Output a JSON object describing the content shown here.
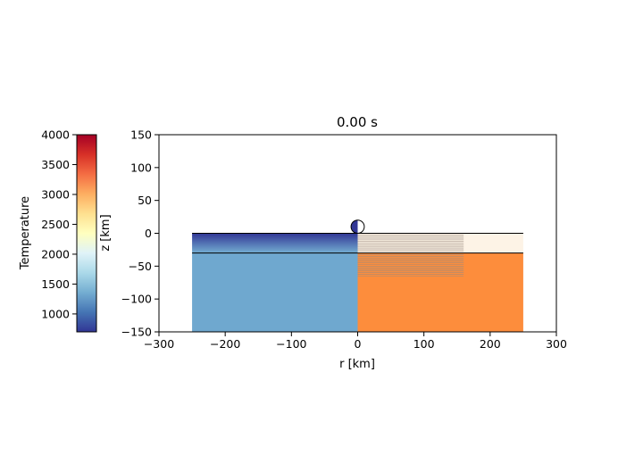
{
  "chart_data": {
    "type": "cross-section",
    "title": "0.00 s",
    "xlabel": "r [km]",
    "ylabel": "z [km]",
    "xlim": [
      -300,
      300
    ],
    "ylim": [
      -150,
      150
    ],
    "xticks": [
      -300,
      -200,
      -100,
      0,
      100,
      200,
      300
    ],
    "yticks": [
      -150,
      -100,
      -50,
      0,
      50,
      100,
      150
    ],
    "xtick_labels": [
      "−300",
      "−200",
      "−100",
      "0",
      "100",
      "200",
      "300"
    ],
    "ytick_labels": [
      "−150",
      "−100",
      "−50",
      "0",
      "50",
      "100",
      "150"
    ],
    "target": {
      "r_range": [
        -250,
        250
      ],
      "z_top": 0,
      "z_bottom": -150,
      "layer_interface_z": -30
    },
    "left_half": {
      "shows": "Temperature",
      "upper_layer_gradient": {
        "z_top": 0,
        "z_bottom": -30,
        "color_top": "#313695",
        "color_bottom": "#74add1"
      },
      "lower_layer_color": "#6fa8cf"
    },
    "right_half": {
      "upper_layer_color": "#fdf3e6",
      "lower_layer_color": "#fd8d3c",
      "hatched_region": {
        "r_range": [
          0,
          160
        ],
        "z_range": [
          -65,
          0
        ]
      },
      "hatch_line_spacing_km": 2.5
    },
    "projectile": {
      "r": 0,
      "z": 10,
      "radius_km": 10,
      "left_fill": "#313695"
    },
    "colorbar": {
      "label": "Temperature",
      "range": [
        700,
        4000
      ],
      "ticks": [
        1000,
        1500,
        2000,
        2500,
        3000,
        3500,
        4000
      ],
      "tick_labels": [
        "1000",
        "1500",
        "2000",
        "2500",
        "3000",
        "3500",
        "4000"
      ],
      "colormap": "RdYlBu_r",
      "colors": [
        "#313695",
        "#4575b4",
        "#74add1",
        "#abd9e9",
        "#e0f3f8",
        "#ffffbf",
        "#fee090",
        "#fdae61",
        "#f46d43",
        "#d73027",
        "#a50026"
      ]
    }
  }
}
